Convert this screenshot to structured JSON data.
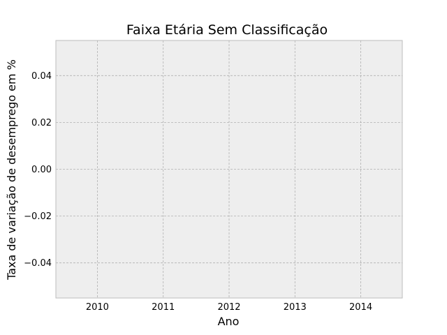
{
  "chart_data": {
    "type": "line",
    "title": "Faixa Etária Sem Classificação",
    "xlabel": "Ano",
    "ylabel": "Taxa de variação de desemprego em %",
    "x_ticks": [
      2010,
      2011,
      2012,
      2013,
      2014
    ],
    "x_tick_labels": [
      "2010",
      "2011",
      "2012",
      "2013",
      "2014"
    ],
    "xlim": [
      2009.37,
      2014.63
    ],
    "y_ticks": [
      0.04,
      0.02,
      0.0,
      -0.02,
      -0.04
    ],
    "y_tick_labels": [
      "0.04",
      "0.02",
      "0.00",
      "−0.02",
      "−0.04"
    ],
    "ylim": [
      -0.055,
      0.055
    ],
    "grid": true,
    "series": [],
    "colors": {
      "background": "#eeeeee",
      "grid": "#b0b0b0",
      "border": "#bcbcbc"
    }
  }
}
